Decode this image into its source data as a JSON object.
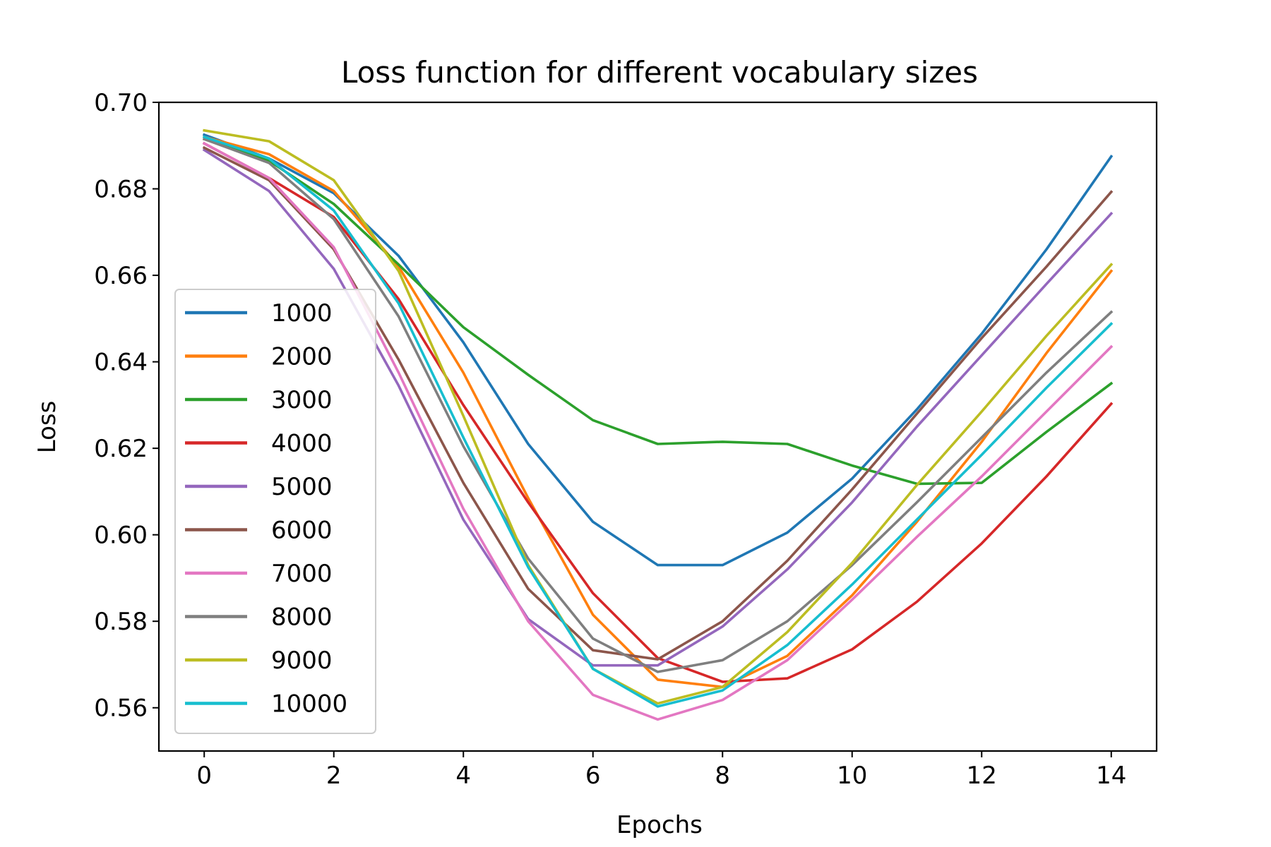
{
  "chart_data": {
    "type": "line",
    "title": "Loss function for different vocabulary sizes",
    "xlabel": "Epochs",
    "ylabel": "Loss",
    "xlim": [
      -0.7,
      14.7
    ],
    "ylim": [
      0.55,
      0.7
    ],
    "xticks": [
      0,
      2,
      4,
      6,
      8,
      10,
      12,
      14
    ],
    "yticks": [
      0.56,
      0.58,
      0.6,
      0.62,
      0.64,
      0.66,
      0.68,
      0.7
    ],
    "xtick_labels": [
      "0",
      "2",
      "4",
      "6",
      "8",
      "10",
      "12",
      "14"
    ],
    "ytick_labels": [
      "0.56",
      "0.58",
      "0.60",
      "0.62",
      "0.64",
      "0.66",
      "0.68",
      "0.70"
    ],
    "grid": false,
    "legend_position": "center-left",
    "x": [
      0,
      1,
      2,
      3,
      4,
      5,
      6,
      7,
      8,
      9,
      10,
      11,
      12,
      13,
      14
    ],
    "series": [
      {
        "name": "1000",
        "color": "#1f77b4",
        "values": [
          0.6925,
          0.687,
          0.679,
          0.6645,
          0.6445,
          0.621,
          0.603,
          0.593,
          0.593,
          0.6005,
          0.613,
          0.629,
          0.6465,
          0.666,
          0.6875
        ]
      },
      {
        "name": "2000",
        "color": "#ff7f0e",
        "values": [
          0.692,
          0.688,
          0.6795,
          0.662,
          0.6375,
          0.6085,
          0.5815,
          0.5665,
          0.5648,
          0.572,
          0.586,
          0.603,
          0.6215,
          0.642,
          0.661
        ]
      },
      {
        "name": "3000",
        "color": "#2ca02c",
        "values": [
          0.6915,
          0.6865,
          0.6765,
          0.6625,
          0.648,
          0.637,
          0.6265,
          0.621,
          0.6215,
          0.621,
          0.616,
          0.6118,
          0.612,
          0.6238,
          0.635
        ]
      },
      {
        "name": "4000",
        "color": "#d62728",
        "values": [
          0.6905,
          0.6825,
          0.6735,
          0.6545,
          0.63,
          0.6075,
          0.5865,
          0.5715,
          0.566,
          0.5668,
          0.5735,
          0.5845,
          0.598,
          0.6135,
          0.6303
        ]
      },
      {
        "name": "5000",
        "color": "#9467bd",
        "values": [
          0.689,
          0.6795,
          0.6615,
          0.6345,
          0.6035,
          0.5805,
          0.5698,
          0.5698,
          0.5788,
          0.592,
          0.6075,
          0.625,
          0.6415,
          0.658,
          0.6743
        ]
      },
      {
        "name": "6000",
        "color": "#8c564b",
        "values": [
          0.6895,
          0.682,
          0.666,
          0.6405,
          0.612,
          0.5875,
          0.5733,
          0.5712,
          0.58,
          0.594,
          0.6105,
          0.628,
          0.6455,
          0.662,
          0.6793
        ]
      },
      {
        "name": "7000",
        "color": "#e377c2",
        "values": [
          0.6905,
          0.6825,
          0.6665,
          0.6375,
          0.606,
          0.58,
          0.563,
          0.5573,
          0.5618,
          0.571,
          0.585,
          0.5995,
          0.6135,
          0.6285,
          0.6435
        ]
      },
      {
        "name": "8000",
        "color": "#7f7f7f",
        "values": [
          0.6915,
          0.686,
          0.673,
          0.6505,
          0.6205,
          0.5945,
          0.576,
          0.5683,
          0.571,
          0.58,
          0.593,
          0.6075,
          0.6225,
          0.6375,
          0.6515
        ]
      },
      {
        "name": "9000",
        "color": "#bcbd22",
        "values": [
          0.6935,
          0.691,
          0.682,
          0.661,
          0.6275,
          0.593,
          0.569,
          0.561,
          0.5648,
          0.5775,
          0.5935,
          0.6115,
          0.6285,
          0.646,
          0.6625
        ]
      },
      {
        "name": "10000",
        "color": "#17becf",
        "values": [
          0.692,
          0.687,
          0.675,
          0.6535,
          0.6225,
          0.5925,
          0.569,
          0.5603,
          0.564,
          0.5745,
          0.5885,
          0.6035,
          0.6185,
          0.634,
          0.6488
        ]
      }
    ]
  }
}
